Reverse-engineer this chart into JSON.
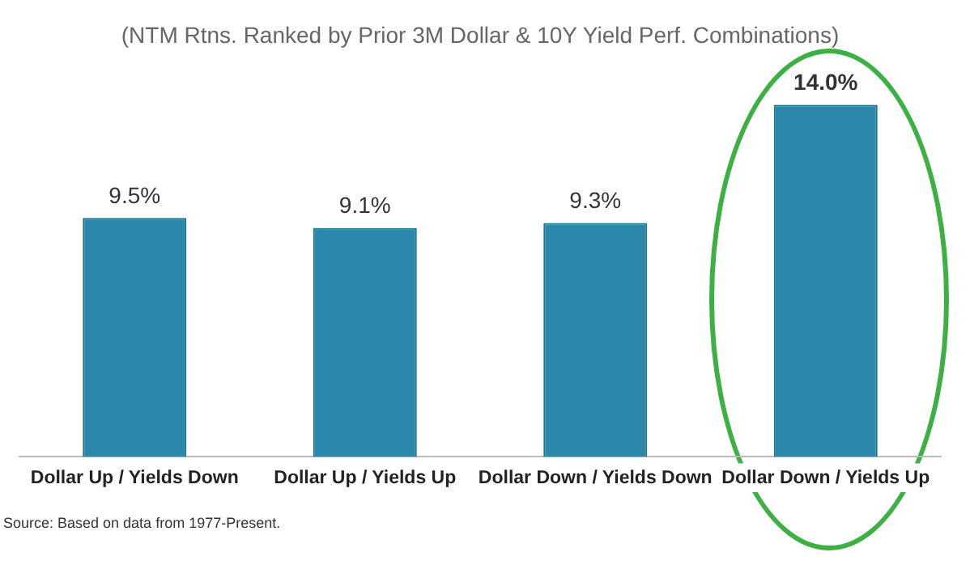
{
  "chart_data": {
    "type": "bar",
    "title": "(NTM Rtns. Ranked by Prior 3M Dollar & 10Y Yield Perf. Combinations)",
    "categories": [
      "Dollar Up / Yields Down",
      "Dollar Up / Yields Up",
      "Dollar Down / Yields Down",
      "Dollar Down / Yields Up"
    ],
    "values": [
      9.5,
      9.1,
      9.3,
      14.0
    ],
    "value_labels": [
      "9.5%",
      "9.1%",
      "9.3%",
      "14.0%"
    ],
    "color": "#2b88ab",
    "grid": false,
    "legend": false,
    "annotations": [
      "Source: Based on data from 1977-Present."
    ]
  }
}
